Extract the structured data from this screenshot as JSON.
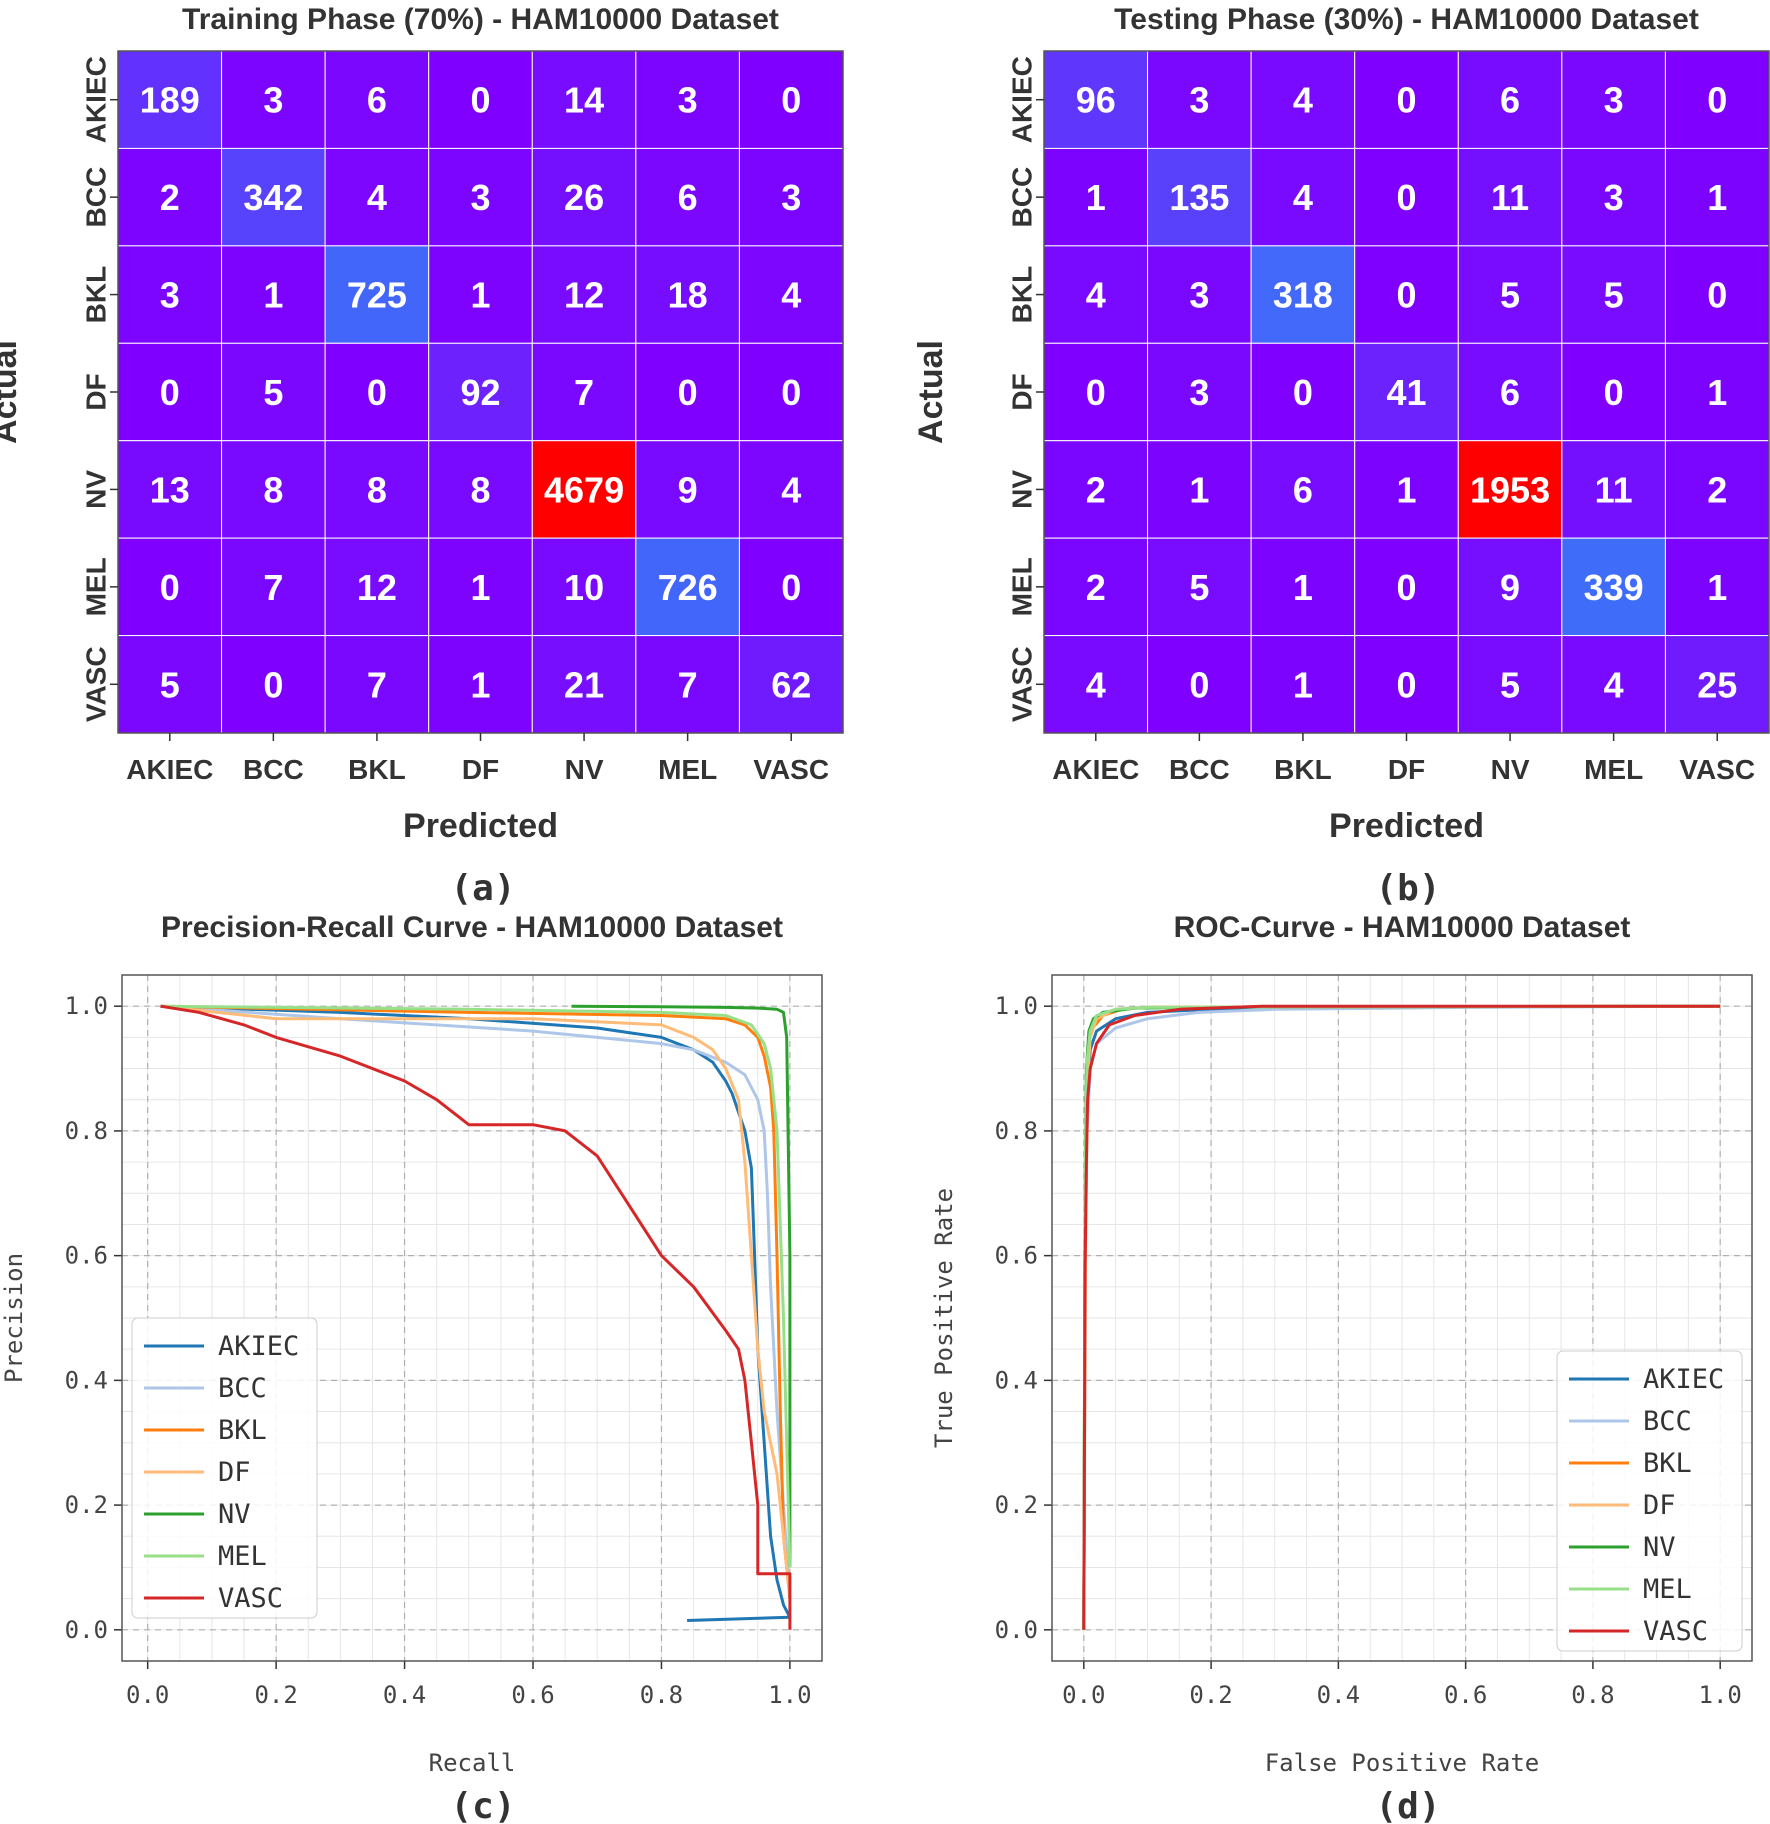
{
  "figure": {
    "panel_labels": [
      "(a)",
      "(b)",
      "(c)",
      "(d)"
    ]
  },
  "chart_data": [
    {
      "type": "heatmap",
      "title": "Training Phase (70%) - HAM10000 Dataset",
      "xlabel": "Predicted",
      "ylabel": "Actual",
      "x_categories": [
        "AKIEC",
        "BCC",
        "BKL",
        "DF",
        "NV",
        "MEL",
        "VASC"
      ],
      "y_categories": [
        "AKIEC",
        "BCC",
        "BKL",
        "DF",
        "NV",
        "MEL",
        "VASC"
      ],
      "values": [
        [
          189,
          3,
          6,
          0,
          14,
          3,
          0
        ],
        [
          2,
          342,
          4,
          3,
          26,
          6,
          3
        ],
        [
          3,
          1,
          725,
          1,
          12,
          18,
          4
        ],
        [
          0,
          5,
          0,
          92,
          7,
          0,
          0
        ],
        [
          13,
          8,
          8,
          8,
          4679,
          9,
          4
        ],
        [
          0,
          7,
          12,
          1,
          10,
          726,
          0
        ],
        [
          5,
          0,
          7,
          1,
          21,
          7,
          62
        ]
      ],
      "colormap": [
        "#7f00ff",
        "#2c8ef8",
        "#ff0000"
      ]
    },
    {
      "type": "heatmap",
      "title": "Testing Phase (30%) - HAM10000 Dataset",
      "xlabel": "Predicted",
      "ylabel": "Actual",
      "x_categories": [
        "AKIEC",
        "BCC",
        "BKL",
        "DF",
        "NV",
        "MEL",
        "VASC"
      ],
      "y_categories": [
        "AKIEC",
        "BCC",
        "BKL",
        "DF",
        "NV",
        "MEL",
        "VASC"
      ],
      "values": [
        [
          96,
          3,
          4,
          0,
          6,
          3,
          0
        ],
        [
          1,
          135,
          4,
          0,
          11,
          3,
          1
        ],
        [
          4,
          3,
          318,
          0,
          5,
          5,
          0
        ],
        [
          0,
          3,
          0,
          41,
          6,
          0,
          1
        ],
        [
          2,
          1,
          6,
          1,
          1953,
          11,
          2
        ],
        [
          2,
          5,
          1,
          0,
          9,
          339,
          1
        ],
        [
          4,
          0,
          1,
          0,
          5,
          4,
          25
        ]
      ],
      "colormap": [
        "#7f00ff",
        "#2c8ef8",
        "#ff0000"
      ]
    },
    {
      "type": "line",
      "title": "Precision-Recall Curve - HAM10000 Dataset",
      "xlabel": "Recall",
      "ylabel": "Precision",
      "xlim": [
        -0.04,
        1.05
      ],
      "ylim": [
        -0.05,
        1.05
      ],
      "xticks": [
        "0.0",
        "0.2",
        "0.4",
        "0.6",
        "0.8",
        "1.0"
      ],
      "yticks": [
        "0.0",
        "0.2",
        "0.4",
        "0.6",
        "0.8",
        "1.0"
      ],
      "grid": true,
      "legend": "center-left",
      "series": [
        {
          "name": "AKIEC",
          "color": "#1f77b4",
          "x": [
            0.02,
            0.3,
            0.5,
            0.7,
            0.8,
            0.85,
            0.88,
            0.9,
            0.91,
            0.92,
            0.93,
            0.94,
            0.945,
            0.95,
            0.96,
            0.97,
            0.98,
            0.99,
            1.0,
            0.84
          ],
          "y": [
            1.0,
            0.99,
            0.98,
            0.965,
            0.95,
            0.93,
            0.91,
            0.88,
            0.86,
            0.83,
            0.8,
            0.74,
            0.6,
            0.45,
            0.3,
            0.15,
            0.08,
            0.04,
            0.02,
            0.015
          ]
        },
        {
          "name": "BCC",
          "color": "#aec7e8",
          "x": [
            0.02,
            0.3,
            0.6,
            0.8,
            0.85,
            0.9,
            0.93,
            0.95,
            0.96,
            0.965,
            0.97,
            0.98,
            0.99,
            1.0
          ],
          "y": [
            1.0,
            0.98,
            0.96,
            0.94,
            0.93,
            0.91,
            0.89,
            0.85,
            0.8,
            0.7,
            0.55,
            0.35,
            0.2,
            0.05
          ]
        },
        {
          "name": "BKL",
          "color": "#ff7f0e",
          "x": [
            0.02,
            0.5,
            0.8,
            0.9,
            0.93,
            0.95,
            0.96,
            0.97,
            0.975,
            0.98,
            0.985,
            0.99,
            1.0
          ],
          "y": [
            1.0,
            0.99,
            0.985,
            0.98,
            0.97,
            0.95,
            0.92,
            0.87,
            0.8,
            0.6,
            0.35,
            0.15,
            0.05
          ]
        },
        {
          "name": "DF",
          "color": "#ffbb78",
          "x": [
            0.02,
            0.2,
            0.4,
            0.6,
            0.8,
            0.85,
            0.88,
            0.9,
            0.92,
            0.93,
            0.94,
            0.95,
            0.96,
            0.97,
            0.98,
            0.99,
            1.0
          ],
          "y": [
            1.0,
            0.98,
            0.98,
            0.98,
            0.97,
            0.95,
            0.93,
            0.9,
            0.85,
            0.75,
            0.6,
            0.45,
            0.35,
            0.3,
            0.25,
            0.15,
            0.05
          ]
        },
        {
          "name": "NV",
          "color": "#2ca02c",
          "x": [
            0.66,
            0.8,
            0.9,
            0.95,
            0.98,
            0.99,
            0.995,
            1.0,
            1.0
          ],
          "y": [
            1.0,
            0.999,
            0.998,
            0.997,
            0.995,
            0.99,
            0.95,
            0.6,
            0.1
          ]
        },
        {
          "name": "MEL",
          "color": "#98df8a",
          "x": [
            0.02,
            0.5,
            0.8,
            0.9,
            0.94,
            0.96,
            0.97,
            0.98,
            0.99,
            1.0
          ],
          "y": [
            1.0,
            0.995,
            0.99,
            0.985,
            0.97,
            0.94,
            0.9,
            0.8,
            0.5,
            0.1
          ]
        },
        {
          "name": "VASC",
          "color": "#d62728",
          "x": [
            0.02,
            0.08,
            0.15,
            0.2,
            0.3,
            0.4,
            0.45,
            0.5,
            0.55,
            0.6,
            0.65,
            0.7,
            0.75,
            0.8,
            0.85,
            0.9,
            0.92,
            0.93,
            0.94,
            0.95,
            0.95,
            0.97,
            1.0,
            1.0
          ],
          "y": [
            1.0,
            0.99,
            0.97,
            0.95,
            0.92,
            0.88,
            0.85,
            0.81,
            0.81,
            0.81,
            0.8,
            0.76,
            0.68,
            0.6,
            0.55,
            0.48,
            0.45,
            0.4,
            0.3,
            0.2,
            0.09,
            0.09,
            0.09,
            0.0
          ]
        }
      ]
    },
    {
      "type": "line",
      "title": "ROC-Curve - HAM10000 Dataset",
      "xlabel": "False Positive Rate",
      "ylabel": "True Positive Rate",
      "xlim": [
        -0.05,
        1.05
      ],
      "ylim": [
        -0.05,
        1.05
      ],
      "xticks": [
        "0.0",
        "0.2",
        "0.4",
        "0.6",
        "0.8",
        "1.0"
      ],
      "yticks": [
        "0.0",
        "0.2",
        "0.4",
        "0.6",
        "0.8",
        "1.0"
      ],
      "grid": true,
      "legend": "lower-right",
      "series": [
        {
          "name": "AKIEC",
          "color": "#1f77b4",
          "x": [
            0.0,
            0.002,
            0.005,
            0.01,
            0.02,
            0.05,
            0.1,
            0.2,
            0.5,
            1.0
          ],
          "y": [
            0.0,
            0.6,
            0.85,
            0.93,
            0.96,
            0.98,
            0.99,
            0.995,
            0.999,
            1.0
          ]
        },
        {
          "name": "BCC",
          "color": "#aec7e8",
          "x": [
            0.0,
            0.002,
            0.005,
            0.01,
            0.02,
            0.05,
            0.1,
            0.18,
            0.3,
            0.6,
            1.0
          ],
          "y": [
            0.0,
            0.55,
            0.8,
            0.9,
            0.94,
            0.965,
            0.98,
            0.99,
            0.995,
            0.998,
            1.0
          ]
        },
        {
          "name": "BKL",
          "color": "#ff7f0e",
          "x": [
            0.0,
            0.002,
            0.005,
            0.01,
            0.03,
            0.06,
            0.1,
            0.3,
            1.0
          ],
          "y": [
            0.0,
            0.7,
            0.9,
            0.96,
            0.985,
            0.995,
            0.998,
            0.999,
            1.0
          ]
        },
        {
          "name": "DF",
          "color": "#ffbb78",
          "x": [
            0.0,
            0.003,
            0.006,
            0.01,
            0.02,
            0.05,
            0.1,
            0.3,
            1.0
          ],
          "y": [
            0.0,
            0.65,
            0.88,
            0.95,
            0.98,
            0.995,
            0.998,
            0.999,
            1.0
          ]
        },
        {
          "name": "NV",
          "color": "#2ca02c",
          "x": [
            0.0,
            0.002,
            0.004,
            0.008,
            0.015,
            0.03,
            0.08,
            0.3,
            1.0
          ],
          "y": [
            0.0,
            0.7,
            0.9,
            0.96,
            0.98,
            0.99,
            0.997,
            0.999,
            1.0
          ]
        },
        {
          "name": "MEL",
          "color": "#98df8a",
          "x": [
            0.0,
            0.002,
            0.005,
            0.01,
            0.02,
            0.05,
            0.1,
            0.3,
            1.0
          ],
          "y": [
            0.0,
            0.72,
            0.91,
            0.96,
            0.985,
            0.995,
            0.998,
            0.999,
            1.0
          ]
        },
        {
          "name": "VASC",
          "color": "#d62728",
          "x": [
            0.0,
            0.002,
            0.004,
            0.006,
            0.01,
            0.02,
            0.04,
            0.08,
            0.15,
            0.28,
            1.0
          ],
          "y": [
            0.0,
            0.58,
            0.75,
            0.85,
            0.9,
            0.94,
            0.97,
            0.985,
            0.995,
            1.0,
            1.0
          ]
        }
      ]
    }
  ]
}
